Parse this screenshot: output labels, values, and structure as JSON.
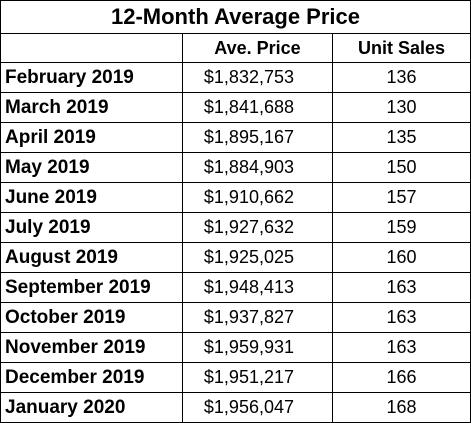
{
  "title": "12-Month Average Price",
  "headers": {
    "month": "",
    "price": "Ave. Price",
    "units": "Unit Sales"
  },
  "rows": [
    {
      "month": "February 2019",
      "price": "$1,832,753",
      "units": "136"
    },
    {
      "month": "March 2019",
      "price": "$1,841,688",
      "units": "130"
    },
    {
      "month": "April 2019",
      "price": "$1,895,167",
      "units": "135"
    },
    {
      "month": "May 2019",
      "price": "$1,884,903",
      "units": "150"
    },
    {
      "month": "June 2019",
      "price": "$1,910,662",
      "units": "157"
    },
    {
      "month": "July 2019",
      "price": "$1,927,632",
      "units": "159"
    },
    {
      "month": "August 2019",
      "price": "$1,925,025",
      "units": "160"
    },
    {
      "month": "September 2019",
      "price": "$1,948,413",
      "units": "163"
    },
    {
      "month": "October 2019",
      "price": "$1,937,827",
      "units": "163"
    },
    {
      "month": "November 2019",
      "price": "$1,959,931",
      "units": "163"
    },
    {
      "month": "December 2019",
      "price": "$1,951,217",
      "units": "166"
    },
    {
      "month": "January 2020",
      "price": "$1,956,047",
      "units": "168"
    }
  ]
}
